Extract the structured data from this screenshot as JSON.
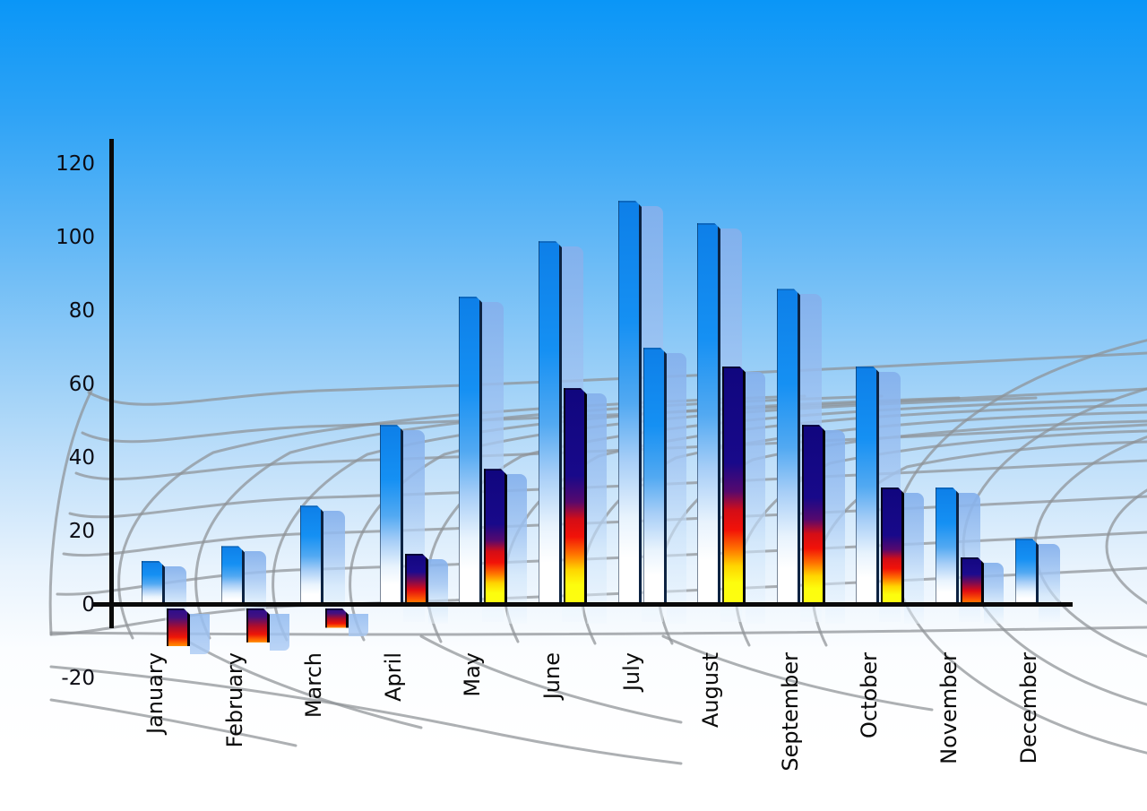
{
  "chart_data": {
    "type": "bar",
    "title": "",
    "xlabel": "",
    "ylabel": "",
    "categories": [
      "January",
      "February",
      "March",
      "April",
      "May",
      "June",
      "July",
      "August",
      "September",
      "October",
      "November",
      "December"
    ],
    "series": [
      {
        "name": "primary-blue-bars",
        "values": [
          12,
          16,
          27,
          49,
          84,
          99,
          110,
          104,
          86,
          65,
          32,
          18
        ]
      },
      {
        "name": "secondary-accent-bars",
        "values": [
          -10,
          -9,
          -5,
          14,
          37,
          59,
          70,
          65,
          49,
          32,
          13,
          null
        ]
      }
    ],
    "second_bar_styles": [
      "rainbow-neg",
      "rainbow-neg",
      "rainbow-neg",
      "rainbow-short",
      "rainbow-full",
      "rainbow-full",
      "blue",
      "rainbow-full",
      "rainbow-full",
      "rainbow-full",
      "rainbow-short",
      null
    ],
    "y_ticks": [
      120,
      100,
      80,
      60,
      40,
      20,
      0,
      -20
    ],
    "ylim": [
      -20,
      120
    ],
    "legend": "none",
    "grid": "decorative-perspective-mesh",
    "colors": {
      "background_top": "#0a96f7",
      "background_bottom": "#ffffff",
      "bar_blue": "#1590f3",
      "bar_ghost": "#a5c6f0",
      "rainbow_navy": "#18098a",
      "rainbow_red": "#f21208",
      "rainbow_yellow": "#fdfd0d",
      "axis": "#0a0a0a",
      "grid_line": "#8d9195",
      "label_text": "#0b0b0b"
    }
  }
}
